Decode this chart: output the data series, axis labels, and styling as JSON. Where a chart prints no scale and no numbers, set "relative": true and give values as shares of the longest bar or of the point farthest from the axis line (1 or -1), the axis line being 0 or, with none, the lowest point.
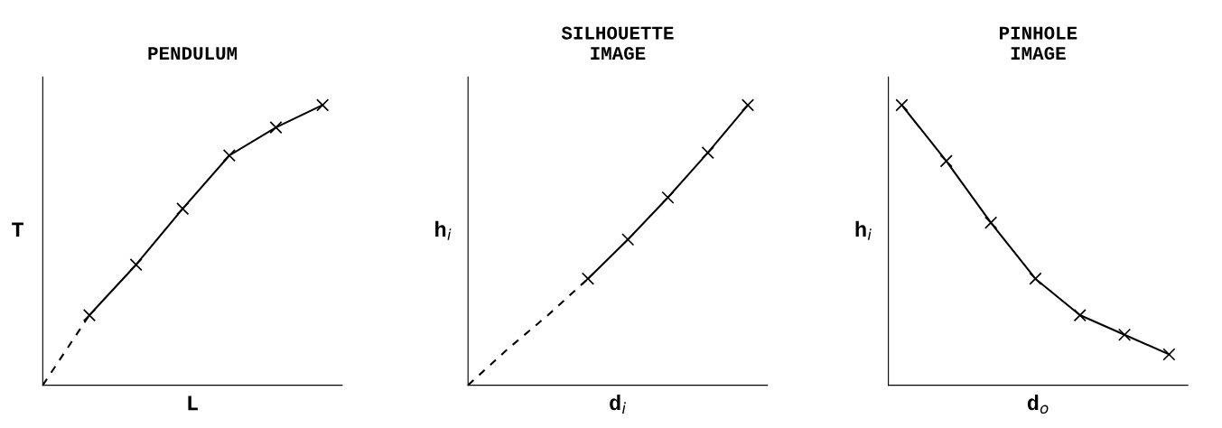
{
  "chart_data": [
    {
      "type": "line",
      "title": "PENDULUM",
      "xlabel": "L",
      "ylabel": "T",
      "relative": true,
      "categories": [
        null,
        null,
        null,
        null,
        null,
        null,
        null
      ],
      "series": [
        {
          "color": "#000000",
          "marker": "cross",
          "line_style": "solid",
          "values": [
            null,
            0.25,
            0.43,
            0.63,
            0.82,
            0.92,
            1.0
          ]
        },
        {
          "color": "#000000",
          "line_style": "dashed",
          "values": [
            0.0,
            0.25,
            null,
            null,
            null,
            null,
            null
          ]
        }
      ]
    },
    {
      "type": "line",
      "title": "SILHOUETTE\nIMAGE",
      "xlabel": "d$_{i}$",
      "ylabel": "h$_{i}$",
      "relative": true,
      "categories": [
        null,
        null,
        null,
        null,
        null,
        null,
        null,
        null
      ],
      "series": [
        {
          "color": "#000000",
          "marker": "cross",
          "line_style": "solid",
          "values": [
            null,
            null,
            null,
            0.38,
            0.52,
            0.67,
            0.83,
            1.0
          ]
        },
        {
          "color": "#000000",
          "line_style": "dashed",
          "values": [
            0.0,
            0.13,
            0.25,
            0.38,
            null,
            null,
            null,
            null
          ]
        }
      ]
    },
    {
      "type": "line",
      "title": "PINHOLE\nIMAGE",
      "xlabel": "d$_{o}$",
      "ylabel": "h$_{i}$",
      "relative": true,
      "categories": [
        null,
        null,
        null,
        null,
        null,
        null,
        null
      ],
      "series": [
        {
          "color": "#000000",
          "marker": "cross",
          "line_style": "solid",
          "values": [
            1.0,
            0.8,
            0.58,
            0.38,
            0.25,
            0.18,
            0.11
          ]
        }
      ]
    }
  ]
}
